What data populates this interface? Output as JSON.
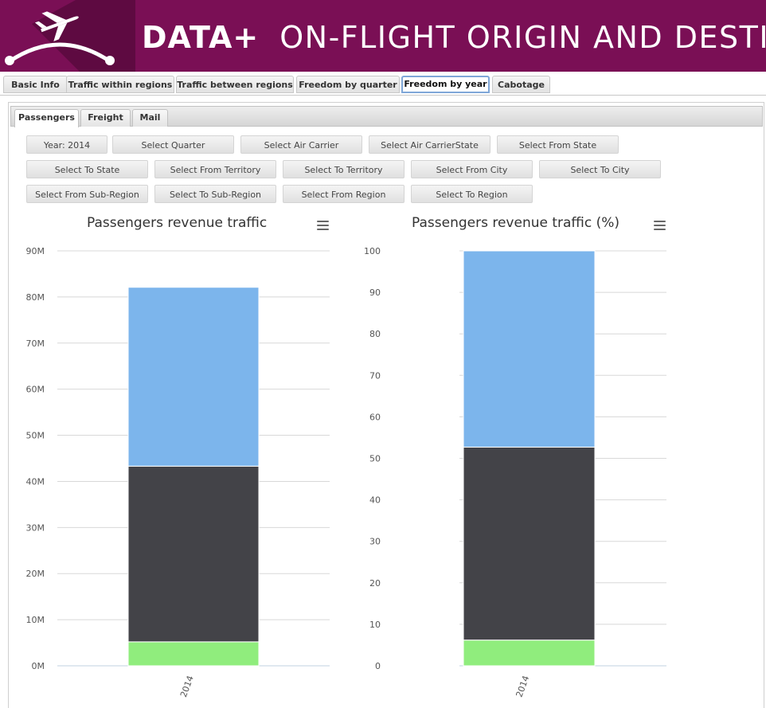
{
  "header": {
    "brand": "DATA+",
    "title": "ON-FLIGHT ORIGIN AND DESTINATION",
    "logo_icon": "airplane-arc-logo"
  },
  "main_tabs": [
    {
      "label": "Basic Info",
      "active": false
    },
    {
      "label": "Traffic within regions",
      "active": false
    },
    {
      "label": "Traffic between regions",
      "active": false
    },
    {
      "label": "Freedom by quarter",
      "active": false
    },
    {
      "label": "Freedom by year",
      "active": true
    },
    {
      "label": "Cabotage",
      "active": false
    }
  ],
  "sub_tabs": [
    {
      "label": "Passengers",
      "active": true
    },
    {
      "label": "Freight",
      "active": false
    },
    {
      "label": "Mail",
      "active": false
    }
  ],
  "filters": [
    "Year: 2014",
    "Select Quarter",
    "Select Air Carrier",
    "Select Air CarrierState",
    "Select From State",
    "Select To State",
    "Select From Territory",
    "Select To Territory",
    "Select From City",
    "Select To City",
    "Select From Sub-Region",
    "Select To Sub-Region",
    "Select From Region",
    "Select To Region"
  ],
  "colors": {
    "header_bg": "#7a0f55",
    "series_green": "#90ed7d",
    "series_dark": "#434348",
    "series_blue": "#7cb5ec"
  },
  "chart_data": [
    {
      "type": "bar",
      "stacked": true,
      "title": "Passengers revenue traffic",
      "categories": [
        "2014"
      ],
      "series": [
        {
          "values": [
            5.2
          ],
          "color": "#90ed7d"
        },
        {
          "values": [
            38.1
          ],
          "color": "#434348"
        },
        {
          "values": [
            38.8
          ],
          "color": "#7cb5ec"
        }
      ],
      "yunit": "M",
      "ylim": [
        0,
        90
      ],
      "yticks": [
        "0M",
        "10M",
        "20M",
        "30M",
        "40M",
        "50M",
        "60M",
        "70M",
        "80M",
        "90M"
      ],
      "grid": true,
      "legend": "none"
    },
    {
      "type": "bar",
      "stacked": true,
      "title": "Passengers revenue traffic (%)",
      "categories": [
        "2014"
      ],
      "series": [
        {
          "values": [
            6.2
          ],
          "color": "#90ed7d"
        },
        {
          "values": [
            46.5
          ],
          "color": "#434348"
        },
        {
          "values": [
            47.3
          ],
          "color": "#7cb5ec"
        }
      ],
      "ylim": [
        0,
        100
      ],
      "yticks": [
        "0",
        "10",
        "20",
        "30",
        "40",
        "50",
        "60",
        "70",
        "80",
        "90",
        "100"
      ],
      "grid": true,
      "legend": "none"
    }
  ]
}
